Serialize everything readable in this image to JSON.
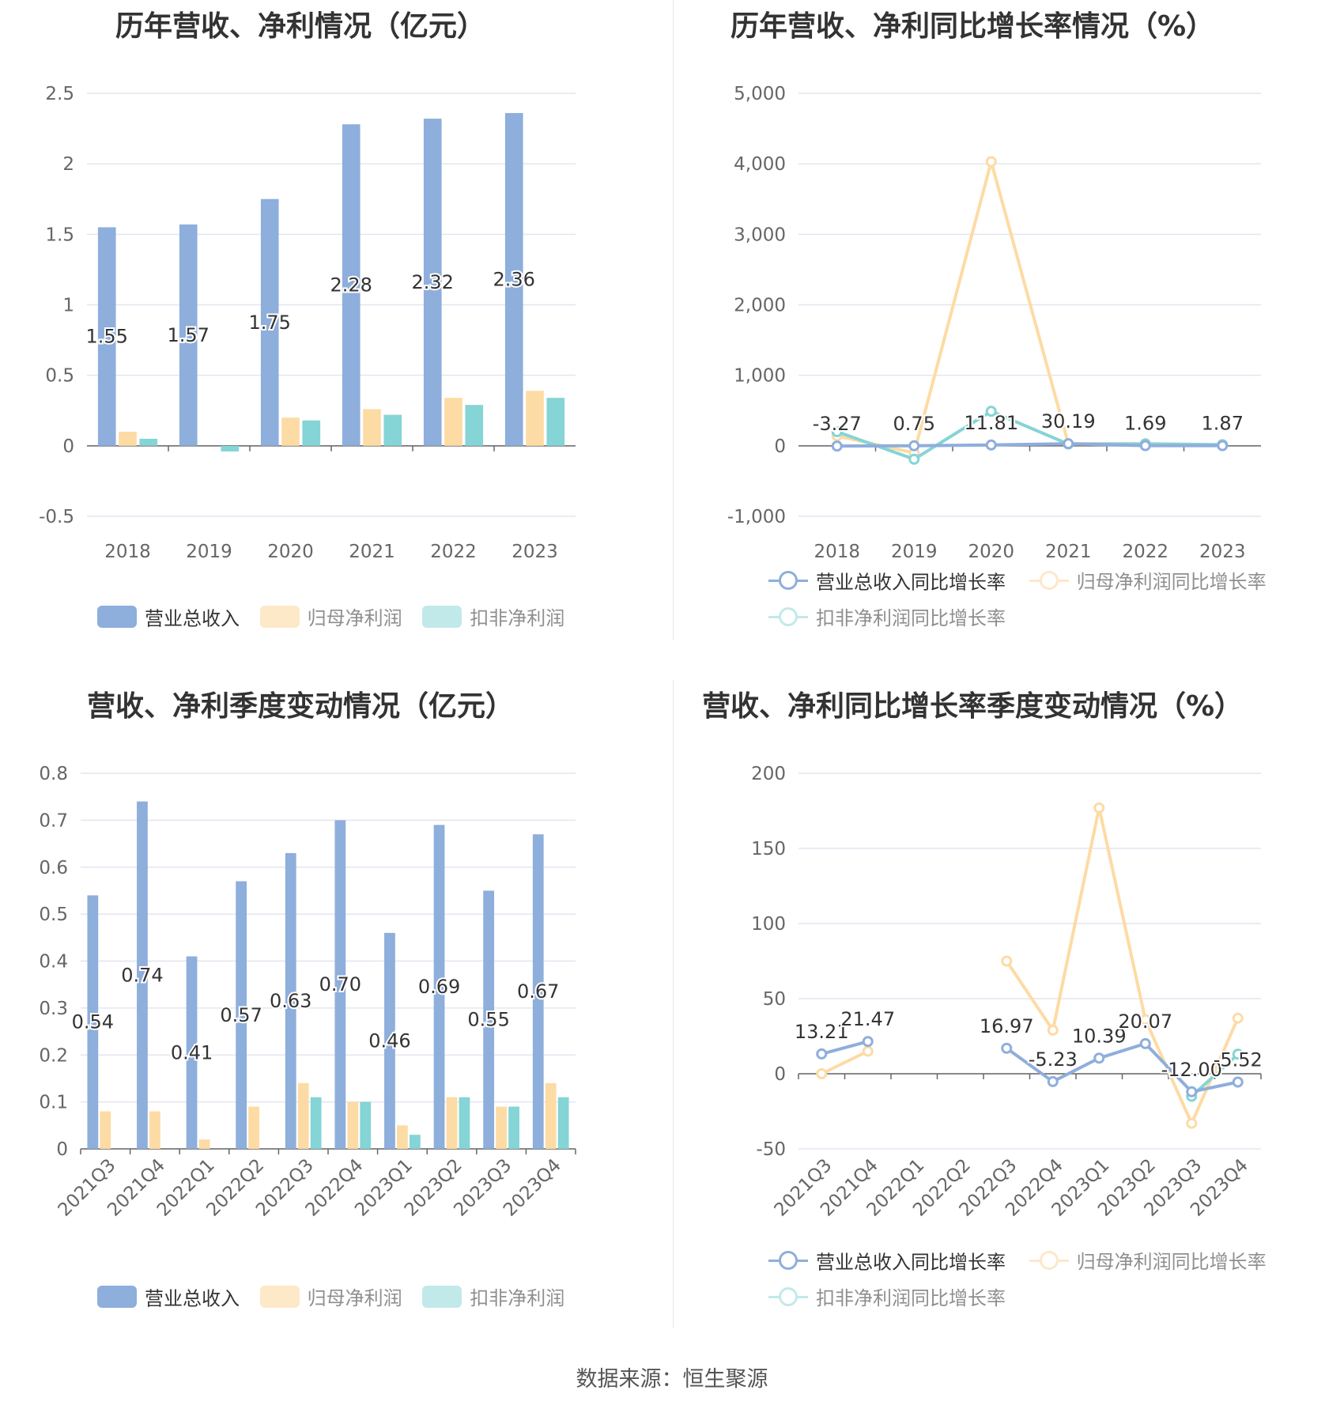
{
  "source_label": "数据来源：恒生聚源",
  "colors": {
    "revenue": "#8eaedc",
    "net_profit": "#fddba4",
    "deducted_profit": "#85d4d6"
  },
  "chart_data": [
    {
      "id": "annual_amount",
      "type": "bar",
      "title": "历年营收、净利情况（亿元）",
      "categories": [
        "2018",
        "2019",
        "2020",
        "2021",
        "2022",
        "2023"
      ],
      "ylim": [
        -0.5,
        2.5
      ],
      "yticks": [
        -0.5,
        0,
        0.5,
        1,
        1.5,
        2,
        2.5
      ],
      "ytick_labels": [
        "-0.5",
        "0",
        "0.5",
        "1",
        "1.5",
        "2",
        "2.5"
      ],
      "grid": true,
      "legend_position": "bottom",
      "series": [
        {
          "name": "营业总收入",
          "values": [
            1.55,
            1.57,
            1.75,
            2.28,
            2.32,
            2.36
          ],
          "labels": [
            "1.55",
            "1.57",
            "1.75",
            "2.28",
            "2.32",
            "2.36"
          ]
        },
        {
          "name": "归母净利润",
          "values": [
            0.1,
            0.0,
            0.2,
            0.26,
            0.34,
            0.39
          ]
        },
        {
          "name": "扣非净利润",
          "values": [
            0.05,
            -0.04,
            0.18,
            0.22,
            0.29,
            0.34
          ]
        }
      ]
    },
    {
      "id": "annual_growth",
      "type": "line",
      "title": "历年营收、净利同比增长率情况（%）",
      "categories": [
        "2018",
        "2019",
        "2020",
        "2021",
        "2022",
        "2023"
      ],
      "ylim": [
        -1000,
        5000
      ],
      "yticks": [
        -1000,
        0,
        1000,
        2000,
        3000,
        4000,
        5000
      ],
      "ytick_labels": [
        "-1,000",
        "0",
        "1,000",
        "2,000",
        "3,000",
        "4,000",
        "5,000"
      ],
      "grid": true,
      "legend_position": "bottom",
      "series": [
        {
          "name": "营业总收入同比增长率",
          "values": [
            -3.27,
            0.75,
            11.81,
            30.19,
            1.69,
            1.87
          ],
          "labels": [
            "-3.27",
            "0.75",
            "11.81",
            "30.19",
            "1.69",
            "1.87"
          ]
        },
        {
          "name": "归母净利润同比增长率",
          "values": [
            140,
            -100,
            4030,
            30,
            30,
            15
          ]
        },
        {
          "name": "扣非净利润同比增长率",
          "values": [
            200,
            -190,
            490,
            25,
            28,
            17
          ]
        }
      ]
    },
    {
      "id": "quarterly_amount",
      "type": "bar",
      "title": "营收、净利季度变动情况（亿元）",
      "categories": [
        "2021Q3",
        "2021Q4",
        "2022Q1",
        "2022Q2",
        "2022Q3",
        "2022Q4",
        "2023Q1",
        "2023Q2",
        "2023Q3",
        "2023Q4"
      ],
      "ylim": [
        0,
        0.8
      ],
      "yticks": [
        0,
        0.1,
        0.2,
        0.3,
        0.4,
        0.5,
        0.6,
        0.7,
        0.8
      ],
      "ytick_labels": [
        "0",
        "0.1",
        "0.2",
        "0.3",
        "0.4",
        "0.5",
        "0.6",
        "0.7",
        "0.8"
      ],
      "grid": true,
      "legend_position": "bottom",
      "series": [
        {
          "name": "营业总收入",
          "values": [
            0.54,
            0.74,
            0.41,
            0.57,
            0.63,
            0.7,
            0.46,
            0.69,
            0.55,
            0.67
          ],
          "labels": [
            "0.54",
            "0.74",
            "0.41",
            "0.57",
            "0.63",
            "0.70",
            "0.46",
            "0.69",
            "0.55",
            "0.67"
          ]
        },
        {
          "name": "归母净利润",
          "values": [
            0.08,
            0.08,
            0.02,
            0.09,
            0.14,
            0.1,
            0.05,
            0.11,
            0.09,
            0.14
          ]
        },
        {
          "name": "扣非净利润",
          "values": [
            null,
            null,
            null,
            null,
            0.11,
            0.1,
            0.03,
            0.11,
            0.09,
            0.11
          ]
        }
      ]
    },
    {
      "id": "quarterly_growth",
      "type": "line",
      "title": "营收、净利同比增长率季度变动情况（%）",
      "categories": [
        "2021Q3",
        "2021Q4",
        "2022Q1",
        "2022Q2",
        "2022Q3",
        "2022Q4",
        "2023Q1",
        "2023Q2",
        "2023Q3",
        "2023Q4"
      ],
      "ylim": [
        -50,
        200
      ],
      "yticks": [
        -50,
        0,
        50,
        100,
        150,
        200
      ],
      "ytick_labels": [
        "-50",
        "0",
        "50",
        "100",
        "150",
        "200"
      ],
      "grid": true,
      "legend_position": "bottom",
      "series": [
        {
          "name": "营业总收入同比增长率",
          "values": [
            13.21,
            21.47,
            null,
            null,
            16.97,
            -5.23,
            10.39,
            20.07,
            -12.0,
            -5.52
          ],
          "labels": [
            "13.21",
            "21.47",
            null,
            null,
            "16.97",
            "-5.23",
            "10.39",
            "20.07",
            "-12.00",
            "-5.52"
          ]
        },
        {
          "name": "归母净利润同比增长率",
          "values": [
            0,
            15,
            null,
            null,
            75,
            29,
            177,
            36,
            -33,
            37
          ]
        },
        {
          "name": "扣非净利润同比增长率",
          "values": [
            null,
            null,
            null,
            null,
            null,
            null,
            null,
            null,
            -15,
            13
          ]
        }
      ]
    }
  ]
}
